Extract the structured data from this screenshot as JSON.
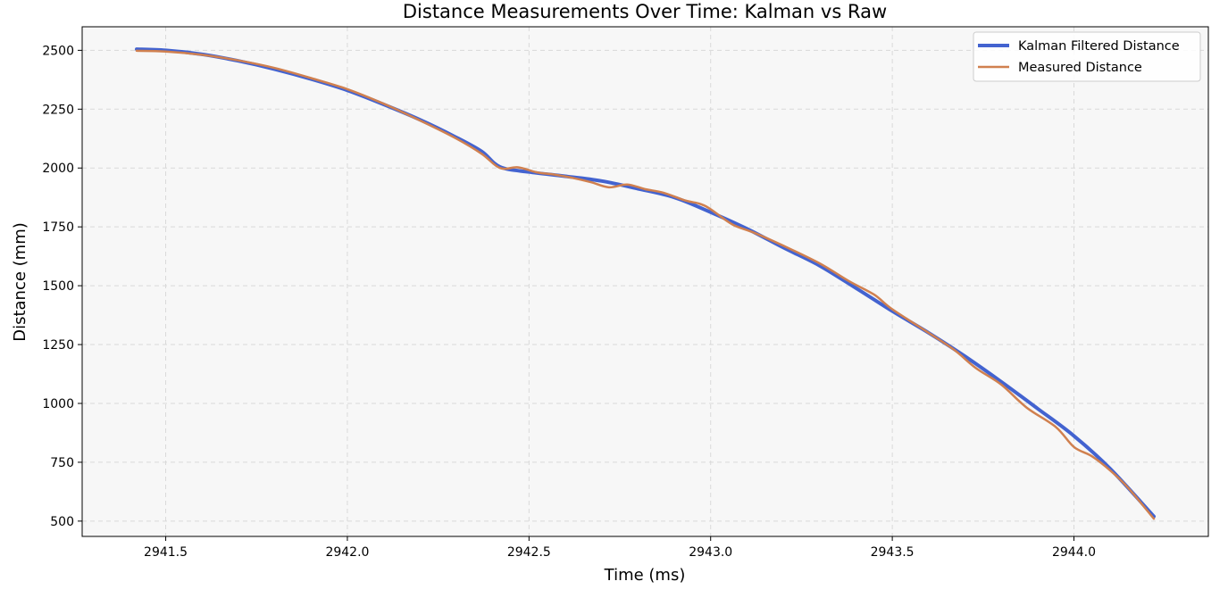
{
  "chart_data": {
    "type": "line",
    "title": "Distance Measurements Over Time: Kalman vs Raw",
    "xlabel": "Time (ms)",
    "ylabel": "Distance (mm)",
    "xlim": [
      2941.27,
      2944.37
    ],
    "ylim": [
      435,
      2600
    ],
    "xticks": [
      2941.5,
      2942.0,
      2942.5,
      2943.0,
      2943.5,
      2944.0
    ],
    "xtick_labels": [
      "2941.5",
      "2942.0",
      "2942.5",
      "2943.0",
      "2943.5",
      "2944.0"
    ],
    "yticks": [
      500,
      750,
      1000,
      1250,
      1500,
      1750,
      2000,
      2250,
      2500
    ],
    "ytick_labels": [
      "500",
      "750",
      "1000",
      "1250",
      "1500",
      "1750",
      "2000",
      "2250",
      "2500"
    ],
    "grid": true,
    "legend_position": "top-right",
    "series": [
      {
        "name": "Kalman Filtered Distance",
        "color": "#4363d0",
        "x": [
          2941.42,
          2941.5,
          2941.6,
          2941.7,
          2941.8,
          2941.9,
          2942.0,
          2942.1,
          2942.2,
          2942.3,
          2942.37,
          2942.42,
          2942.5,
          2942.6,
          2942.7,
          2942.8,
          2942.9,
          2943.0,
          2943.1,
          2943.2,
          2943.3,
          2943.4,
          2943.5,
          2943.6,
          2943.7,
          2943.8,
          2943.9,
          2944.0,
          2944.1,
          2944.22
        ],
        "values": [
          2505,
          2500,
          2483,
          2455,
          2420,
          2378,
          2330,
          2270,
          2205,
          2130,
          2070,
          2005,
          1983,
          1965,
          1945,
          1912,
          1875,
          1812,
          1742,
          1662,
          1585,
          1490,
          1392,
          1300,
          1200,
          1092,
          978,
          862,
          722,
          520
        ]
      },
      {
        "name": "Measured Distance",
        "color": "#d0804f",
        "x": [
          2941.42,
          2941.5,
          2941.6,
          2941.7,
          2941.8,
          2941.9,
          2942.0,
          2942.1,
          2942.2,
          2942.3,
          2942.37,
          2942.42,
          2942.47,
          2942.52,
          2942.57,
          2942.62,
          2942.67,
          2942.72,
          2942.77,
          2942.82,
          2942.87,
          2942.93,
          2942.97,
          2943.0,
          2943.06,
          2943.12,
          2943.2,
          2943.3,
          2943.38,
          2943.45,
          2943.5,
          2943.6,
          2943.67,
          2943.73,
          2943.8,
          2943.87,
          2943.95,
          2944.0,
          2944.05,
          2944.1,
          2944.15,
          2944.22
        ],
        "values": [
          2498,
          2495,
          2481,
          2457,
          2425,
          2382,
          2335,
          2273,
          2202,
          2125,
          2060,
          2000,
          2003,
          1982,
          1972,
          1958,
          1940,
          1918,
          1930,
          1910,
          1895,
          1862,
          1848,
          1825,
          1760,
          1725,
          1670,
          1595,
          1520,
          1462,
          1400,
          1300,
          1228,
          1150,
          1080,
          982,
          900,
          815,
          775,
          715,
          640,
          510
        ]
      }
    ]
  }
}
